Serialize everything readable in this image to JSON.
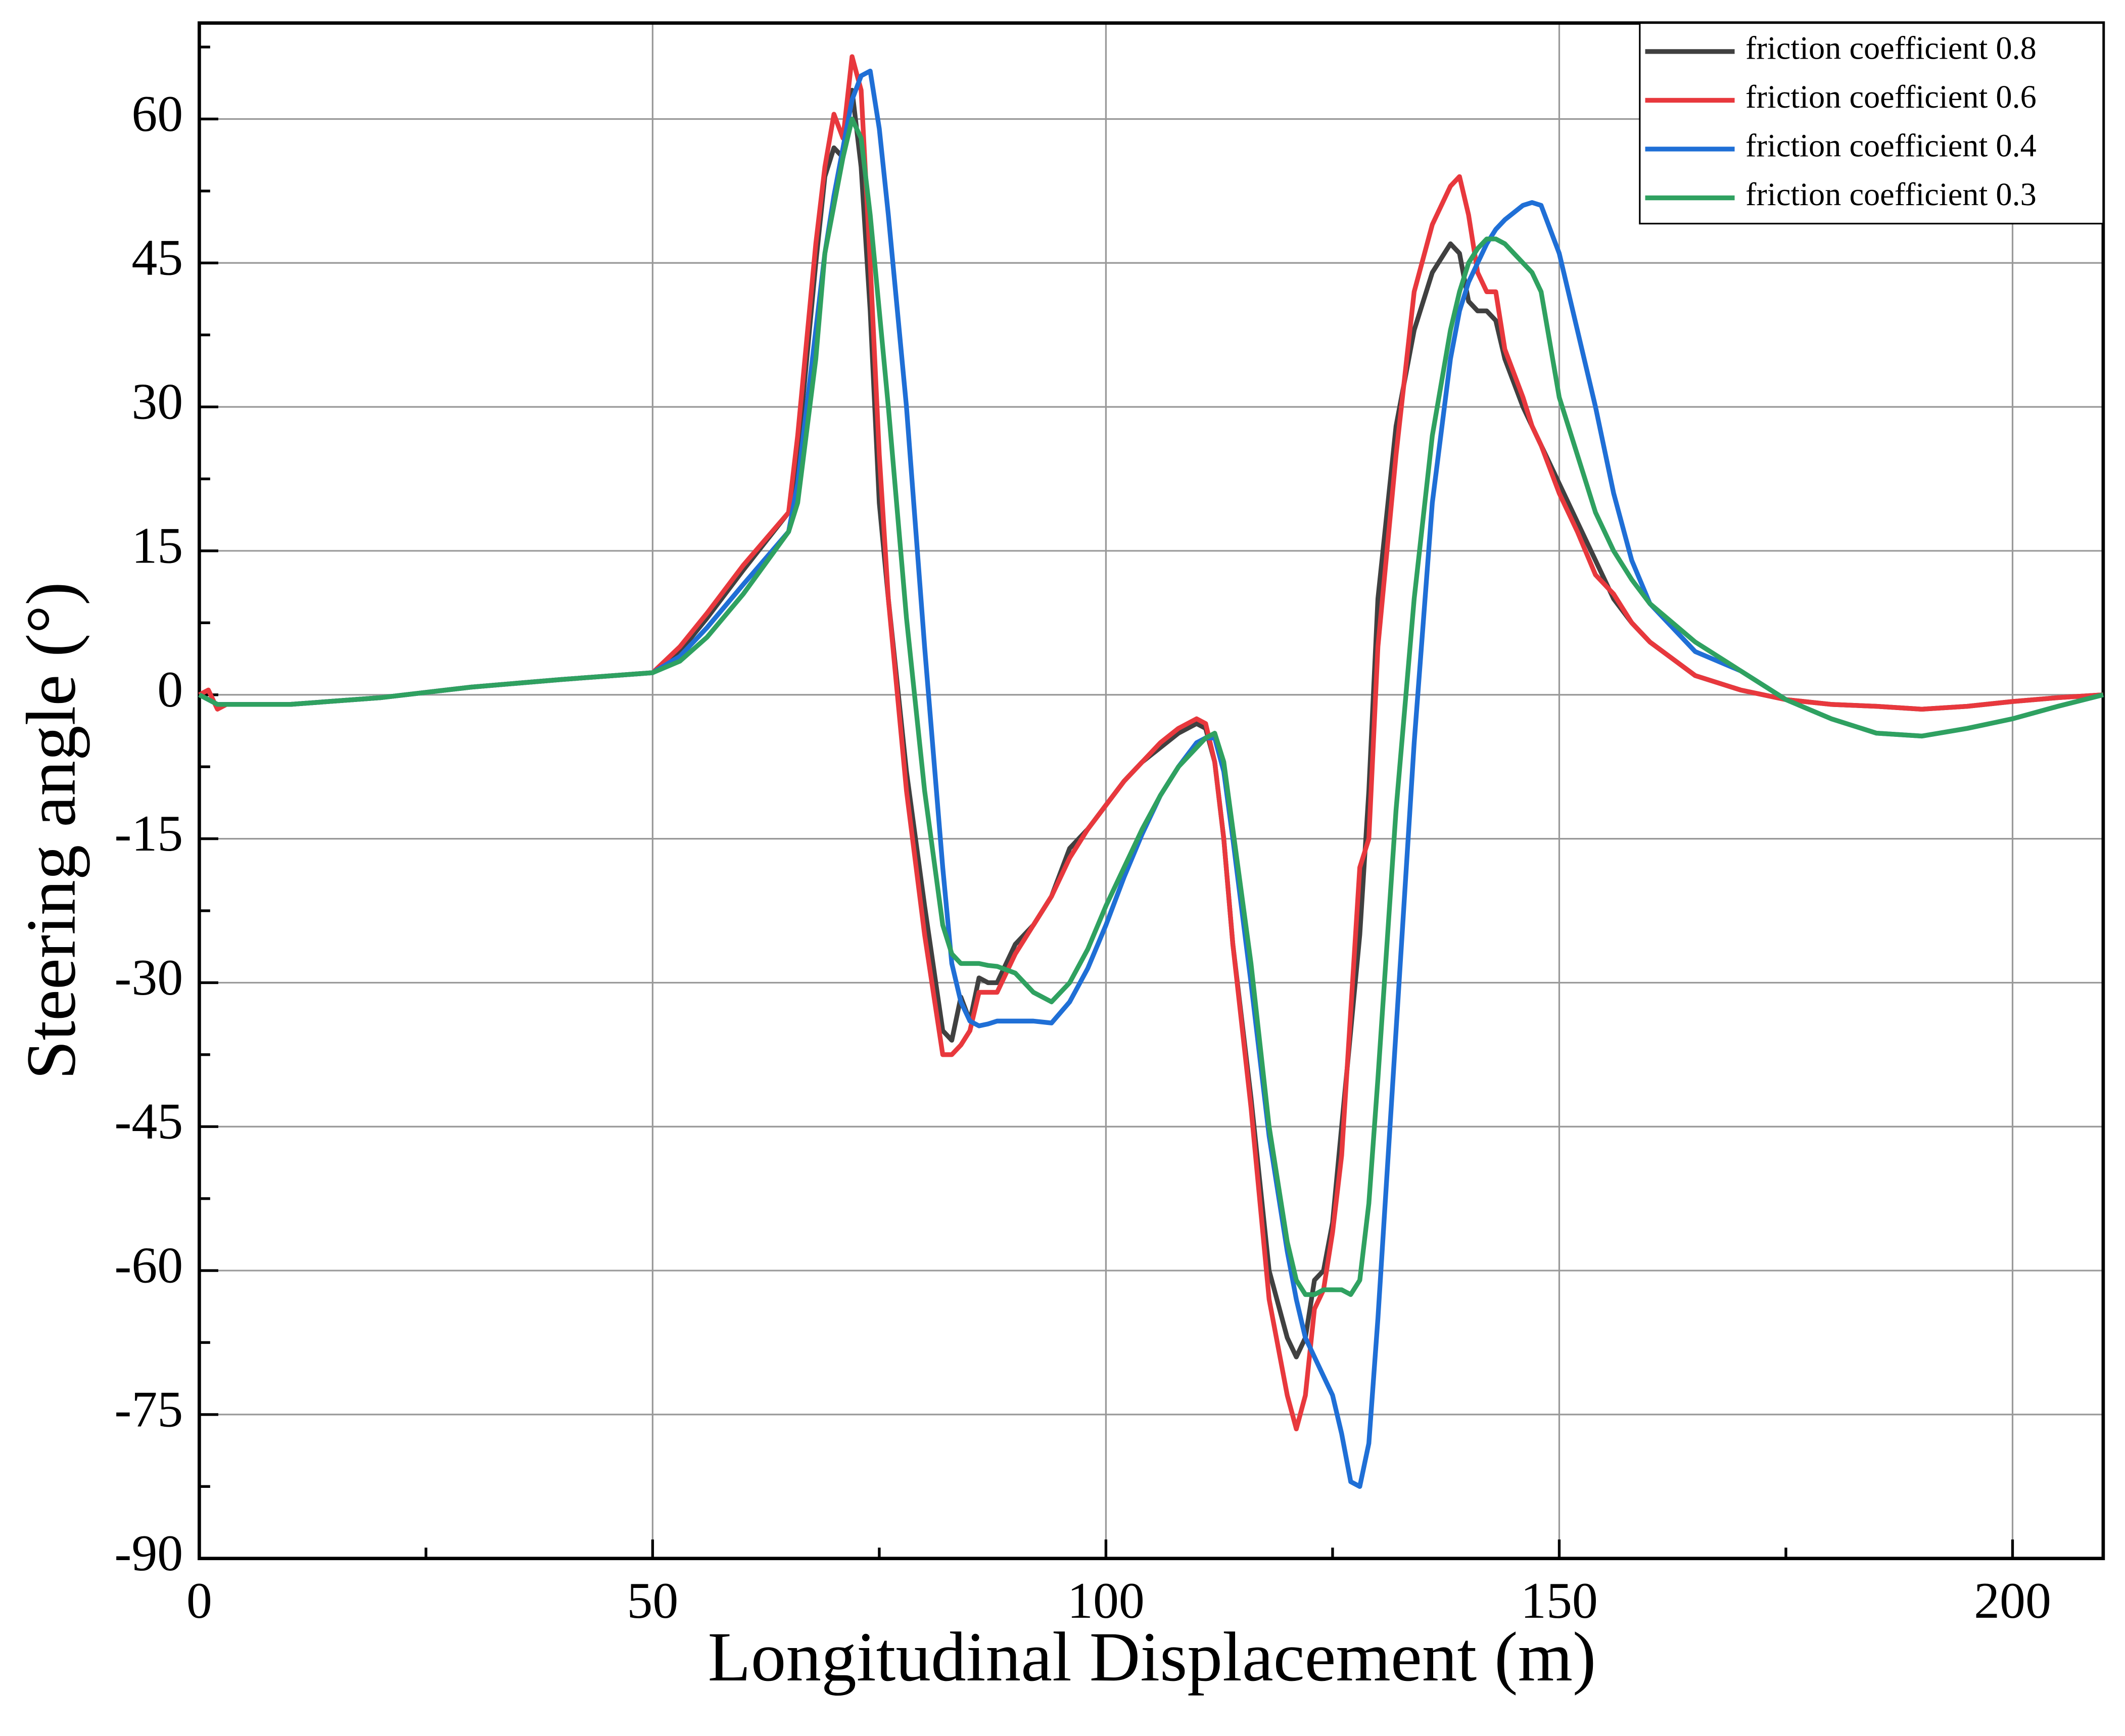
{
  "chart_data": {
    "type": "line",
    "xlabel": "Longitudinal Displacement (m)",
    "ylabel": "Steering angle (°)",
    "xlim": [
      0,
      210
    ],
    "ylim": [
      -90,
      70
    ],
    "xticks": [
      0,
      50,
      100,
      150,
      200
    ],
    "yticks": [
      -90,
      -75,
      -60,
      -45,
      -30,
      -15,
      0,
      15,
      30,
      45,
      60
    ],
    "grid": true,
    "legend": "upper right",
    "x": [
      0,
      1,
      2,
      3,
      5,
      10,
      20,
      30,
      40,
      50,
      53,
      56,
      60,
      65,
      66,
      68,
      69,
      70,
      71,
      72,
      73,
      74,
      75,
      76,
      78,
      80,
      82,
      83,
      84,
      85,
      86,
      87,
      88,
      90,
      92,
      94,
      96,
      98,
      100,
      102,
      104,
      106,
      108,
      110,
      111,
      112,
      113,
      114,
      116,
      118,
      120,
      121,
      122,
      123,
      124,
      125,
      126,
      127,
      128,
      129,
      130,
      132,
      134,
      136,
      138,
      139,
      140,
      141,
      142,
      143,
      144,
      146,
      147,
      148,
      150,
      152,
      154,
      156,
      158,
      160,
      165,
      170,
      175,
      180,
      185,
      190,
      195,
      200,
      205,
      210
    ],
    "series": [
      {
        "name": "friction coefficient 0.8",
        "color": "#404040",
        "values": [
          0,
          -0.5,
          -1,
          -1,
          -1,
          -1,
          -0.3,
          0.8,
          1.6,
          2.3,
          4.5,
          8,
          13,
          19,
          25,
          45,
          54,
          57,
          56,
          63,
          55,
          40,
          20,
          10,
          -8,
          -22,
          -35,
          -36,
          -31.5,
          -34,
          -29.5,
          -30,
          -30,
          -26,
          -24,
          -21,
          -16,
          -14,
          -11.5,
          -9,
          -7,
          -5.5,
          -4,
          -3,
          -3.5,
          -7,
          -15,
          -26,
          -42,
          -60,
          -67,
          -69,
          -67,
          -61,
          -60,
          -55,
          -45,
          -35,
          -25,
          -10,
          10,
          28,
          38,
          44,
          47,
          46,
          41,
          40,
          40,
          39,
          35,
          30,
          28,
          26,
          22,
          18,
          14,
          10,
          7.5,
          5.5,
          2,
          0.5,
          -0.5,
          -1,
          -1.2,
          -1.5,
          -1.2,
          -0.7,
          -0.3,
          0
        ]
      },
      {
        "name": "friction coefficient 0.6",
        "color": "#e8383d",
        "values": [
          0,
          0.5,
          -1.5,
          -1,
          -1,
          -1,
          -0.3,
          0.8,
          1.6,
          2.3,
          5,
          8.5,
          13.5,
          19,
          27,
          47,
          55,
          60.5,
          58,
          66.5,
          63,
          45,
          25,
          10,
          -10,
          -25,
          -37.5,
          -37.5,
          -36.5,
          -35,
          -31,
          -31,
          -31,
          -27,
          -24,
          -21,
          -17,
          -14,
          -11.5,
          -9,
          -7,
          -5,
          -3.5,
          -2.5,
          -3,
          -7,
          -15,
          -26,
          -43,
          -63,
          -73,
          -76.5,
          -73,
          -64,
          -62,
          -56,
          -48,
          -33,
          -18,
          -15,
          5,
          25,
          42,
          49,
          53,
          54,
          50,
          44,
          42,
          42,
          36,
          31,
          28,
          26,
          21,
          17,
          12.5,
          10.5,
          7.5,
          5.5,
          2,
          0.5,
          -0.5,
          -1,
          -1.2,
          -1.5,
          -1.2,
          -0.7,
          -0.3,
          0
        ]
      },
      {
        "name": "friction coefficient 0.4",
        "color": "#1f6fd6",
        "values": [
          0,
          -0.5,
          -1,
          -1,
          -1,
          -1,
          -0.3,
          0.8,
          1.6,
          2.3,
          4,
          7,
          11.5,
          17,
          22,
          38,
          46,
          52,
          57,
          62,
          64.5,
          65,
          59,
          50,
          30,
          5,
          -18,
          -28,
          -32,
          -34,
          -34.5,
          -34.3,
          -34,
          -34,
          -34,
          -34.2,
          -32,
          -28.5,
          -24,
          -19,
          -14.5,
          -10.5,
          -7.5,
          -5,
          -4.5,
          -4.5,
          -8,
          -15,
          -30,
          -46,
          -58,
          -63,
          -67,
          -69,
          -71,
          -73,
          -77,
          -82,
          -82.5,
          -78,
          -65,
          -35,
          -5,
          20,
          35,
          40,
          43,
          45,
          47,
          48.5,
          49.5,
          51,
          51.3,
          51,
          46,
          38,
          30,
          21,
          14,
          9.5,
          4.5,
          2.5,
          -0.5,
          -2.5,
          -4,
          -4.3,
          -3.5,
          -2.5,
          -1.2,
          0
        ]
      },
      {
        "name": "friction coefficient 0.3",
        "color": "#2fa160",
        "values": [
          0,
          -0.5,
          -1,
          -1,
          -1,
          -1,
          -0.3,
          0.8,
          1.6,
          2.3,
          3.5,
          6,
          10.5,
          17,
          20,
          35,
          46,
          51,
          56,
          60,
          58,
          50,
          40,
          30,
          8,
          -10,
          -24,
          -27,
          -28,
          -28,
          -28,
          -28.2,
          -28.3,
          -29,
          -31,
          -32,
          -30,
          -26.5,
          -22,
          -18,
          -14,
          -10.5,
          -7.5,
          -5.5,
          -4.5,
          -4,
          -7,
          -14,
          -28,
          -45,
          -57,
          -61,
          -62.5,
          -62.5,
          -62,
          -62,
          -62,
          -62.5,
          -61,
          -53,
          -40,
          -12,
          10,
          27,
          38,
          42,
          45,
          46.5,
          47.5,
          47.5,
          47,
          45,
          44,
          42,
          31,
          25,
          19,
          15,
          12,
          9.5,
          5.5,
          2.5,
          -0.5,
          -2.5,
          -4,
          -4.3,
          -3.5,
          -2.5,
          -1.2,
          0
        ]
      }
    ]
  }
}
